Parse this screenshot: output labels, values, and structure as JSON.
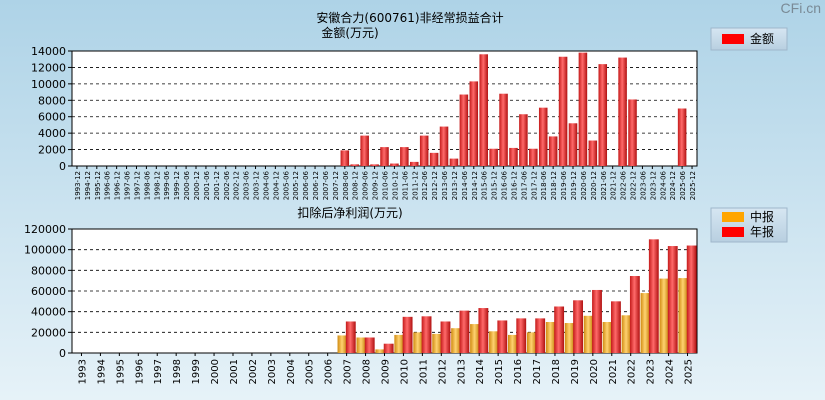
{
  "watermark": "CFi.cn",
  "chart_data": [
    {
      "type": "bar",
      "title": "安徽合力(600761)非经常损益合计",
      "ylabel": "金额(万元)",
      "ylim": [
        0,
        14000
      ],
      "yticks": [
        0,
        2000,
        4000,
        6000,
        8000,
        10000,
        12000,
        14000
      ],
      "grid": true,
      "legend": {
        "position": "top-right",
        "items": [
          {
            "name": "金额",
            "color": "#ff0000"
          }
        ]
      },
      "categories": [
        "1993-12",
        "1994-12",
        "1995-12",
        "1996-06",
        "1996-12",
        "1997-06",
        "1997-12",
        "1998-06",
        "1998-12",
        "1999-06",
        "1999-12",
        "2000-06",
        "2000-12",
        "2001-06",
        "2001-12",
        "2002-06",
        "2002-12",
        "2003-06",
        "2003-12",
        "2004-06",
        "2004-12",
        "2005-06",
        "2005-12",
        "2006-06",
        "2006-12",
        "2007-06",
        "2007-12",
        "2008-06",
        "2008-12",
        "2009-06",
        "2009-12",
        "2010-06",
        "2010-12",
        "2011-06",
        "2011-12",
        "2012-06",
        "2012-12",
        "2013-06",
        "2013-12",
        "2014-06",
        "2014-12",
        "2015-06",
        "2015-12",
        "2016-06",
        "2016-12",
        "2017-06",
        "2017-12",
        "2018-06",
        "2018-12",
        "2019-06",
        "2019-12",
        "2020-06",
        "2020-12",
        "2021-06",
        "2021-12",
        "2022-06",
        "2022-12",
        "2023-06",
        "2023-12",
        "2024-06",
        "2024-12",
        "2025-06",
        "2025-12"
      ],
      "values": [
        0,
        0,
        0,
        0,
        0,
        0,
        0,
        0,
        0,
        0,
        0,
        0,
        0,
        0,
        0,
        0,
        0,
        0,
        0,
        0,
        0,
        0,
        0,
        0,
        0,
        0,
        0,
        1900,
        200,
        3700,
        200,
        2300,
        300,
        2300,
        500,
        3700,
        1600,
        4800,
        900,
        8700,
        10300,
        13600,
        2100,
        8800,
        2200,
        6300,
        2100,
        7100,
        3600,
        13300,
        5200,
        13800,
        3100,
        12400,
        0,
        13200,
        8100,
        0,
        0,
        0,
        0,
        7000,
        0
      ]
    },
    {
      "type": "bar",
      "title": "扣除后净利润(万元)",
      "ylim": [
        0,
        120000
      ],
      "yticks": [
        0,
        20000,
        40000,
        60000,
        80000,
        100000,
        120000
      ],
      "grid": true,
      "legend": {
        "position": "top-right",
        "items": [
          {
            "name": "中报",
            "color": "#ffa500"
          },
          {
            "name": "年报",
            "color": "#ff0000"
          }
        ]
      },
      "categories": [
        "1993",
        "1994",
        "1995",
        "1996",
        "1997",
        "1998",
        "1999",
        "2000",
        "2001",
        "2002",
        "2003",
        "2004",
        "2005",
        "2006",
        "2007",
        "2008",
        "2009",
        "2010",
        "2011",
        "2012",
        "2013",
        "2014",
        "2015",
        "2016",
        "2017",
        "2018",
        "2019",
        "2020",
        "2021",
        "2022",
        "2023",
        "2024",
        "2025"
      ],
      "series": [
        {
          "name": "中报",
          "color": "#ffa500",
          "values": [
            0,
            0,
            0,
            0,
            0,
            0,
            0,
            0,
            0,
            0,
            0,
            0,
            0,
            0,
            17000,
            15000,
            3500,
            17500,
            20000,
            18500,
            24000,
            28000,
            21000,
            17500,
            20000,
            30000,
            29000,
            36000,
            30000,
            36500,
            58000,
            72000,
            72500
          ]
        },
        {
          "name": "年报",
          "color": "#ff0000",
          "values": [
            0,
            0,
            0,
            0,
            0,
            0,
            0,
            0,
            0,
            0,
            0,
            0,
            0,
            0,
            30500,
            15000,
            9000,
            35000,
            35500,
            30500,
            41000,
            43500,
            31500,
            33500,
            33500,
            45000,
            51000,
            61000,
            50000,
            74500,
            110000,
            103500,
            104000
          ]
        }
      ]
    }
  ]
}
